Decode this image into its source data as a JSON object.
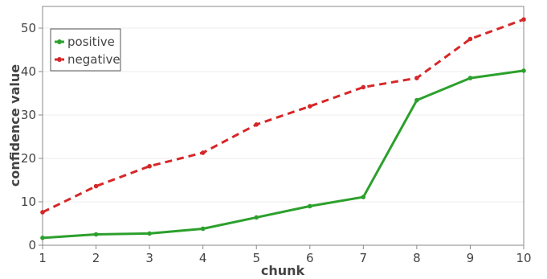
{
  "chart_data": {
    "type": "line",
    "x": [
      1,
      2,
      3,
      4,
      5,
      6,
      7,
      8,
      9,
      10
    ],
    "xlabel": "chunk",
    "ylabel": "confidence value",
    "xlim": [
      1,
      10
    ],
    "ylim": [
      0,
      55
    ],
    "xticks": [
      1,
      2,
      3,
      4,
      5,
      6,
      7,
      8,
      9,
      10
    ],
    "yticks": [
      0,
      10,
      20,
      30,
      40,
      50
    ],
    "grid": true,
    "legend": "top-left",
    "series": [
      {
        "name": "positive",
        "color": "#2ca02c",
        "dash": "solid",
        "values": [
          1.7,
          2.5,
          2.7,
          3.8,
          6.4,
          9.0,
          11.1,
          33.4,
          38.5,
          40.2
        ]
      },
      {
        "name": "negative",
        "color": "#d62728",
        "dash": "dashed",
        "values": [
          7.6,
          13.6,
          18.2,
          21.3,
          27.8,
          32.0,
          36.4,
          38.5,
          47.5,
          52.0
        ]
      }
    ]
  }
}
